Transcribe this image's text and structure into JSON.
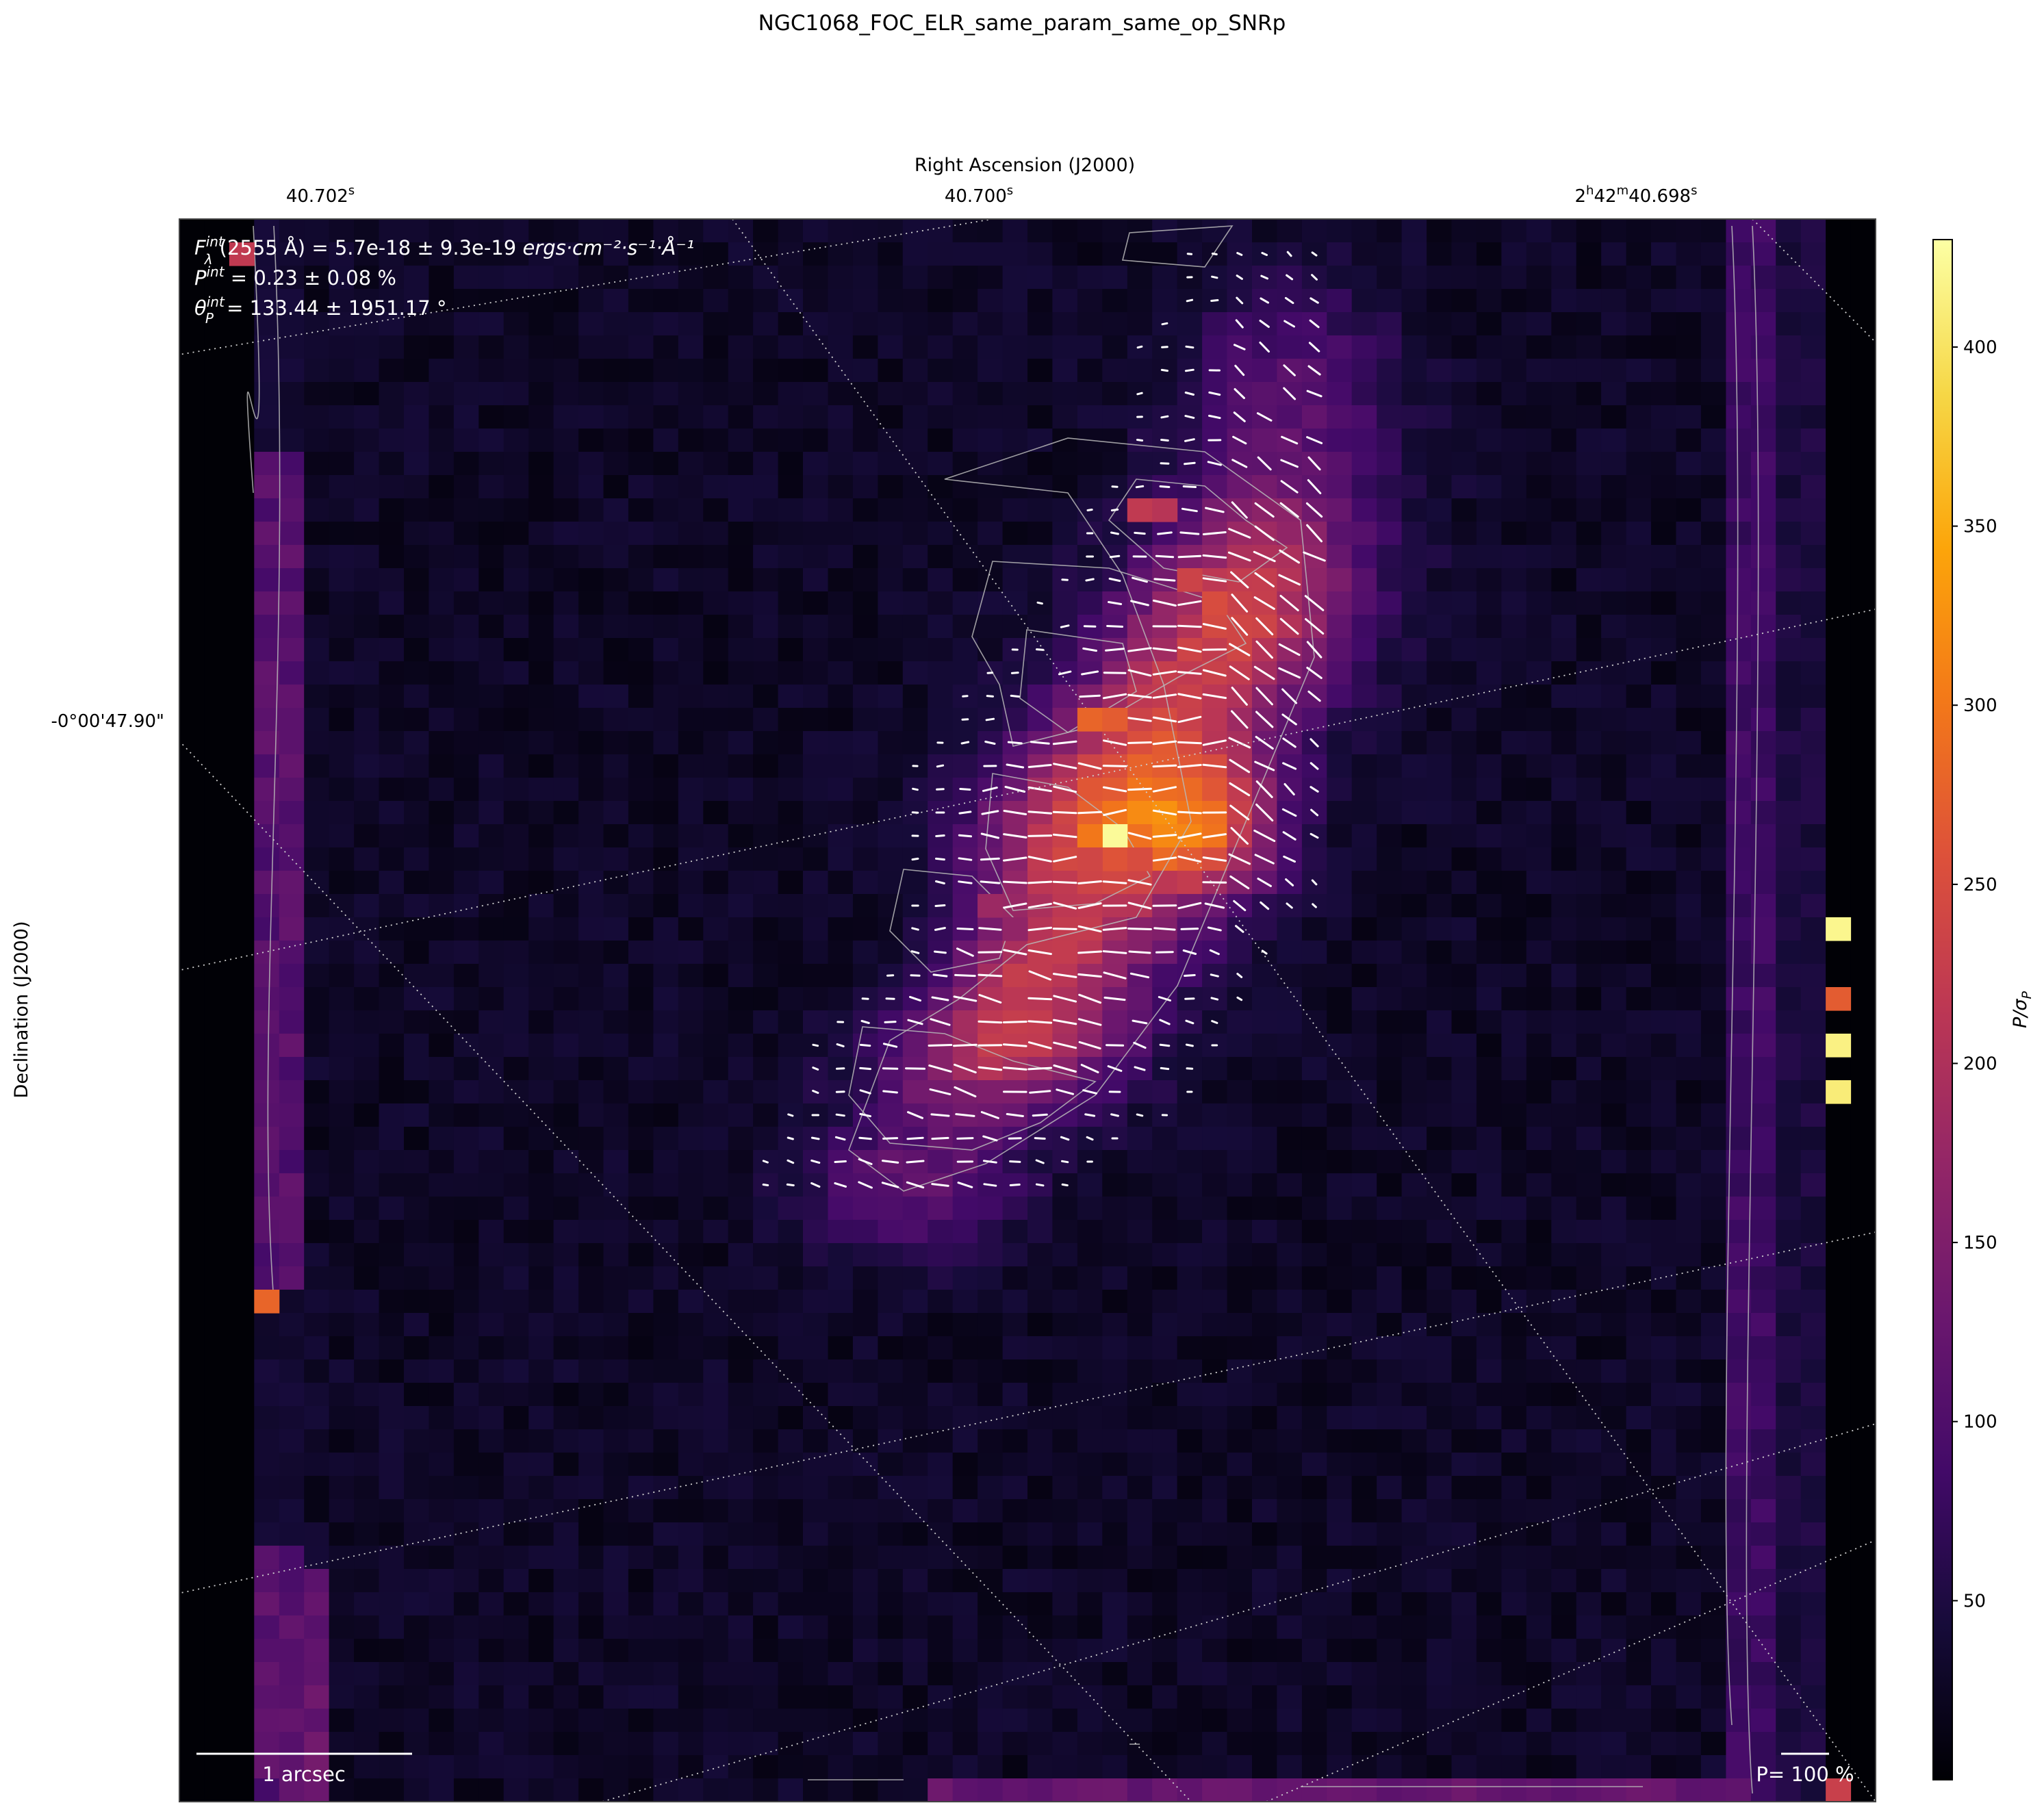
{
  "chart_data": {
    "type": "heatmap",
    "title": "NGC1068_FOC_ELR_same_param_same_op_SNRp",
    "xlabel": "Right Ascension (J2000)",
    "ylabel": "Declination (J2000)",
    "x_ticks": [
      {
        "main": "40.702",
        "sup": "s"
      },
      {
        "main": "40.700",
        "sup": "s"
      },
      {
        "main": "2",
        "sup": "h",
        "main2": "42",
        "sup2": "m",
        "main3": "40.698",
        "sup3": "s"
      }
    ],
    "y_ticks": [
      "-0°00'47.90\""
    ],
    "colorbar": {
      "label": "P/σP",
      "label_main": "P/σ",
      "label_sub": "P",
      "range": [
        0,
        430
      ],
      "ticks": [
        50,
        100,
        150,
        200,
        250,
        300,
        350,
        400
      ],
      "colormap": "inferno"
    },
    "annotations": {
      "flux_lhs": "F",
      "flux_lhs_sup": "int",
      "flux_lhs_sub": "λ",
      "flux_wavelength": "(2555 Å)",
      "flux_value": " = 5.7e-18 ± 9.3e-19 ",
      "flux_units": "ergs·cm⁻²·s⁻¹·Å⁻¹",
      "pol_lhs": "P",
      "pol_sup": "int",
      "pol_value": " = 0.23 ± 0.08 %",
      "angle_lhs": "θ",
      "angle_sup": "int",
      "angle_sub": "P",
      "angle_value": " = 133.44 ± 1951.17 °"
    },
    "scalebar_label": "1 arcsec",
    "vector_scale_label": "P= 100 %",
    "grid": true,
    "grid_style": "dotted-diagonal",
    "peaks": [
      {
        "name": "nucleus-peak",
        "value": 425
      },
      {
        "name": "edge-right-peak-1",
        "value": 420
      },
      {
        "name": "edge-right-peak-2",
        "value": 270
      },
      {
        "name": "edge-right-peak-3",
        "value": 415
      },
      {
        "name": "edge-right-peak-4",
        "value": 410
      },
      {
        "name": "edge-left-peak-top",
        "value": 220
      },
      {
        "name": "edge-left-peak-bottom",
        "value": 280
      },
      {
        "name": "clump-orange",
        "value": 280
      },
      {
        "name": "clump-red",
        "value": 250
      }
    ]
  },
  "colors": {
    "background": "#ffffff",
    "map_floor": "#000004",
    "vector": "#ffffff",
    "contour": "#b8b8b8",
    "grid": "#d0d0d0"
  }
}
